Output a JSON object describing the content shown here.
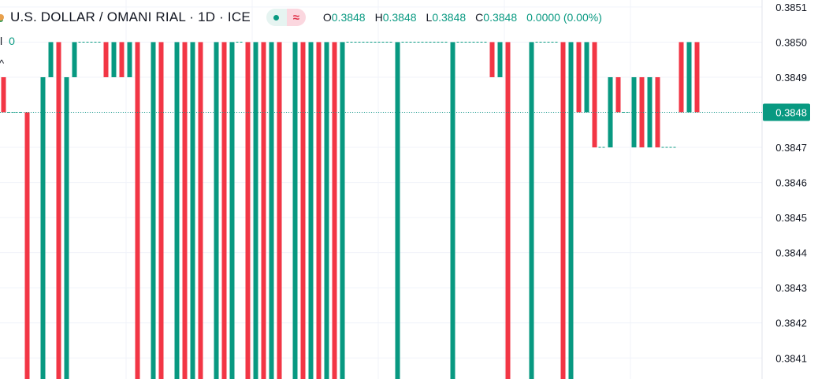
{
  "header": {
    "title": "U.S. DOLLAR / OMANI RIAL · 1D · ICE",
    "delay_symbol": "≈",
    "ohlc": [
      {
        "key": "O",
        "value": "0.3848"
      },
      {
        "key": "H",
        "value": "0.3848"
      },
      {
        "key": "L",
        "value": "0.3848"
      },
      {
        "key": "C",
        "value": "0.3848"
      }
    ],
    "change": "0.0000 (0.00%)"
  },
  "volume": {
    "label": "l",
    "value": "0"
  },
  "collapse_symbol": "^",
  "price_badge": "0.3848",
  "colors": {
    "up": "#089981",
    "down": "#f23645",
    "grid": "#f0f3fa",
    "axis_text": "#131722"
  },
  "chart_data": {
    "type": "bar",
    "style": "candlestick",
    "ylim": [
      0.38404,
      0.38512
    ],
    "y_ticks": [
      "0.3841",
      "0.3842",
      "0.3843",
      "0.3844",
      "0.3845",
      "0.3846",
      "0.3847",
      "0.3848",
      "0.3849",
      "0.3850",
      "0.3851"
    ],
    "last_price": 0.3848,
    "grid": true,
    "candles": [
      {
        "dir": "down",
        "open": 0.3849,
        "close": 0.3848
      },
      {
        "dir": "flat",
        "open": 0.3848,
        "close": 0.3848
      },
      {
        "dir": "flat",
        "open": 0.3848,
        "close": 0.3848
      },
      {
        "dir": "down",
        "open": 0.3848,
        "close": 0.384
      },
      {
        "dir": "flat",
        "open": 0.384,
        "close": 0.384
      },
      {
        "dir": "up",
        "open": 0.384,
        "close": 0.3849
      },
      {
        "dir": "up",
        "open": 0.3849,
        "close": 0.385
      },
      {
        "dir": "down",
        "open": 0.385,
        "close": 0.384
      },
      {
        "dir": "up",
        "open": 0.384,
        "close": 0.3849
      },
      {
        "dir": "up",
        "open": 0.3849,
        "close": 0.385
      },
      {
        "dir": "flat",
        "open": 0.385,
        "close": 0.385
      },
      {
        "dir": "flat",
        "open": 0.385,
        "close": 0.385
      },
      {
        "dir": "flat",
        "open": 0.385,
        "close": 0.385
      },
      {
        "dir": "down",
        "open": 0.385,
        "close": 0.3849
      },
      {
        "dir": "up",
        "open": 0.3849,
        "close": 0.385
      },
      {
        "dir": "down",
        "open": 0.385,
        "close": 0.3849
      },
      {
        "dir": "up",
        "open": 0.3849,
        "close": 0.385
      },
      {
        "dir": "down",
        "open": 0.385,
        "close": 0.384
      },
      {
        "dir": "flat",
        "open": 0.384,
        "close": 0.384
      },
      {
        "dir": "up",
        "open": 0.384,
        "close": 0.385
      },
      {
        "dir": "down",
        "open": 0.385,
        "close": 0.384
      },
      {
        "dir": "flat",
        "open": 0.384,
        "close": 0.384
      },
      {
        "dir": "up",
        "open": 0.384,
        "close": 0.385
      },
      {
        "dir": "down",
        "open": 0.385,
        "close": 0.384
      },
      {
        "dir": "up",
        "open": 0.384,
        "close": 0.385
      },
      {
        "dir": "down",
        "open": 0.385,
        "close": 0.384
      },
      {
        "dir": "flat",
        "open": 0.384,
        "close": 0.384
      },
      {
        "dir": "up",
        "open": 0.384,
        "close": 0.385
      },
      {
        "dir": "down",
        "open": 0.385,
        "close": 0.384
      },
      {
        "dir": "up",
        "open": 0.384,
        "close": 0.385
      },
      {
        "dir": "flat",
        "open": 0.385,
        "close": 0.385
      },
      {
        "dir": "down",
        "open": 0.385,
        "close": 0.384
      },
      {
        "dir": "up",
        "open": 0.384,
        "close": 0.385
      },
      {
        "dir": "down",
        "open": 0.385,
        "close": 0.384
      },
      {
        "dir": "up",
        "open": 0.384,
        "close": 0.385
      },
      {
        "dir": "down",
        "open": 0.385,
        "close": 0.384
      },
      {
        "dir": "flat",
        "open": 0.384,
        "close": 0.384
      },
      {
        "dir": "up",
        "open": 0.384,
        "close": 0.385
      },
      {
        "dir": "down",
        "open": 0.385,
        "close": 0.384
      },
      {
        "dir": "up",
        "open": 0.384,
        "close": 0.385
      },
      {
        "dir": "down",
        "open": 0.385,
        "close": 0.384
      },
      {
        "dir": "up",
        "open": 0.384,
        "close": 0.385
      },
      {
        "dir": "down",
        "open": 0.385,
        "close": 0.384
      },
      {
        "dir": "up",
        "open": 0.384,
        "close": 0.385
      },
      {
        "dir": "flat",
        "open": 0.385,
        "close": 0.385
      },
      {
        "dir": "flat",
        "open": 0.385,
        "close": 0.385
      },
      {
        "dir": "flat",
        "open": 0.385,
        "close": 0.385
      },
      {
        "dir": "flat",
        "open": 0.385,
        "close": 0.385
      },
      {
        "dir": "flat",
        "open": 0.385,
        "close": 0.385
      },
      {
        "dir": "flat",
        "open": 0.385,
        "close": 0.385
      },
      {
        "dir": "up",
        "open": 0.384,
        "close": 0.385
      },
      {
        "dir": "flat",
        "open": 0.385,
        "close": 0.385
      },
      {
        "dir": "flat",
        "open": 0.385,
        "close": 0.385
      },
      {
        "dir": "flat",
        "open": 0.385,
        "close": 0.385
      },
      {
        "dir": "flat",
        "open": 0.385,
        "close": 0.385
      },
      {
        "dir": "flat",
        "open": 0.385,
        "close": 0.385
      },
      {
        "dir": "flat",
        "open": 0.385,
        "close": 0.385
      },
      {
        "dir": "up",
        "open": 0.384,
        "close": 0.385
      },
      {
        "dir": "flat",
        "open": 0.385,
        "close": 0.385
      },
      {
        "dir": "flat",
        "open": 0.385,
        "close": 0.385
      },
      {
        "dir": "flat",
        "open": 0.385,
        "close": 0.385
      },
      {
        "dir": "flat",
        "open": 0.385,
        "close": 0.385
      },
      {
        "dir": "down",
        "open": 0.385,
        "close": 0.3849
      },
      {
        "dir": "up",
        "open": 0.3849,
        "close": 0.385
      },
      {
        "dir": "down",
        "open": 0.385,
        "close": 0.384
      },
      {
        "dir": "flat",
        "open": 0.384,
        "close": 0.384
      },
      {
        "dir": "flat",
        "open": 0.384,
        "close": 0.384
      },
      {
        "dir": "up",
        "open": 0.384,
        "close": 0.385
      },
      {
        "dir": "flat",
        "open": 0.385,
        "close": 0.385
      },
      {
        "dir": "flat",
        "open": 0.385,
        "close": 0.385
      },
      {
        "dir": "flat",
        "open": 0.385,
        "close": 0.385
      },
      {
        "dir": "down",
        "open": 0.385,
        "close": 0.384
      },
      {
        "dir": "up",
        "open": 0.384,
        "close": 0.385
      },
      {
        "dir": "down",
        "open": 0.385,
        "close": 0.3848
      },
      {
        "dir": "up",
        "open": 0.3848,
        "close": 0.385
      },
      {
        "dir": "down",
        "open": 0.385,
        "close": 0.3847
      },
      {
        "dir": "flat",
        "open": 0.3847,
        "close": 0.3847
      },
      {
        "dir": "up",
        "open": 0.3847,
        "close": 0.3849
      },
      {
        "dir": "down",
        "open": 0.3849,
        "close": 0.3848
      },
      {
        "dir": "flat",
        "open": 0.3848,
        "close": 0.3848
      },
      {
        "dir": "up",
        "open": 0.3847,
        "close": 0.3849
      },
      {
        "dir": "down",
        "open": 0.3849,
        "close": 0.3847
      },
      {
        "dir": "up",
        "open": 0.3847,
        "close": 0.3849
      },
      {
        "dir": "down",
        "open": 0.3849,
        "close": 0.3847
      },
      {
        "dir": "flat",
        "open": 0.3847,
        "close": 0.3847
      },
      {
        "dir": "flat",
        "open": 0.3847,
        "close": 0.3847
      },
      {
        "dir": "down",
        "open": 0.385,
        "close": 0.3848
      },
      {
        "dir": "up",
        "open": 0.3848,
        "close": 0.385
      },
      {
        "dir": "down",
        "open": 0.385,
        "close": 0.3848
      }
    ]
  }
}
